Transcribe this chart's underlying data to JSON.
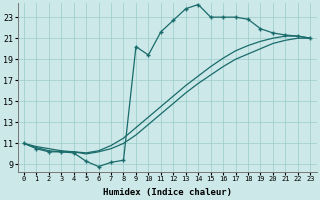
{
  "xlabel": "Humidex (Indice chaleur)",
  "bg_color": "#cce8e8",
  "line_color": "#1a6b6b",
  "grid_color": "#99cccc",
  "xlim": [
    -0.5,
    23.5
  ],
  "ylim": [
    8.3,
    24.3
  ],
  "xticks": [
    0,
    1,
    2,
    3,
    4,
    5,
    6,
    7,
    8,
    9,
    10,
    11,
    12,
    13,
    14,
    15,
    16,
    17,
    18,
    19,
    20,
    21,
    22,
    23
  ],
  "yticks": [
    9,
    11,
    13,
    15,
    17,
    19,
    21,
    23
  ],
  "curve1_x": [
    0,
    1,
    2,
    3,
    4,
    5,
    6,
    7,
    8,
    9,
    10,
    11,
    12,
    13,
    14,
    15,
    16,
    17,
    18,
    19,
    20,
    21,
    22,
    23
  ],
  "curve1_y": [
    11.0,
    10.5,
    10.2,
    10.2,
    10.1,
    9.3,
    8.8,
    9.2,
    9.4,
    20.2,
    19.4,
    21.6,
    22.7,
    23.8,
    24.2,
    23.0,
    23.0,
    23.0,
    22.8,
    21.9,
    21.5,
    21.3,
    21.2,
    21.0
  ],
  "curve2_x": [
    0,
    1,
    2,
    3,
    4,
    5,
    6,
    7,
    8,
    9,
    10,
    11,
    12,
    13,
    14,
    15,
    16,
    17,
    18,
    19,
    20,
    21,
    22,
    23
  ],
  "curve2_y": [
    11.0,
    10.7,
    10.5,
    10.3,
    10.2,
    10.0,
    10.2,
    10.5,
    11.0,
    11.8,
    12.8,
    13.8,
    14.8,
    15.8,
    16.7,
    17.5,
    18.3,
    19.0,
    19.5,
    20.0,
    20.5,
    20.8,
    21.0,
    21.0
  ],
  "curve3_x": [
    0,
    1,
    2,
    3,
    4,
    5,
    6,
    7,
    8,
    9,
    10,
    11,
    12,
    13,
    14,
    15,
    16,
    17,
    18,
    19,
    20,
    21,
    22,
    23
  ],
  "curve3_y": [
    11.0,
    10.6,
    10.3,
    10.2,
    10.2,
    10.1,
    10.3,
    10.8,
    11.5,
    12.5,
    13.5,
    14.5,
    15.5,
    16.5,
    17.4,
    18.3,
    19.1,
    19.8,
    20.3,
    20.7,
    21.0,
    21.2,
    21.2,
    21.0
  ]
}
